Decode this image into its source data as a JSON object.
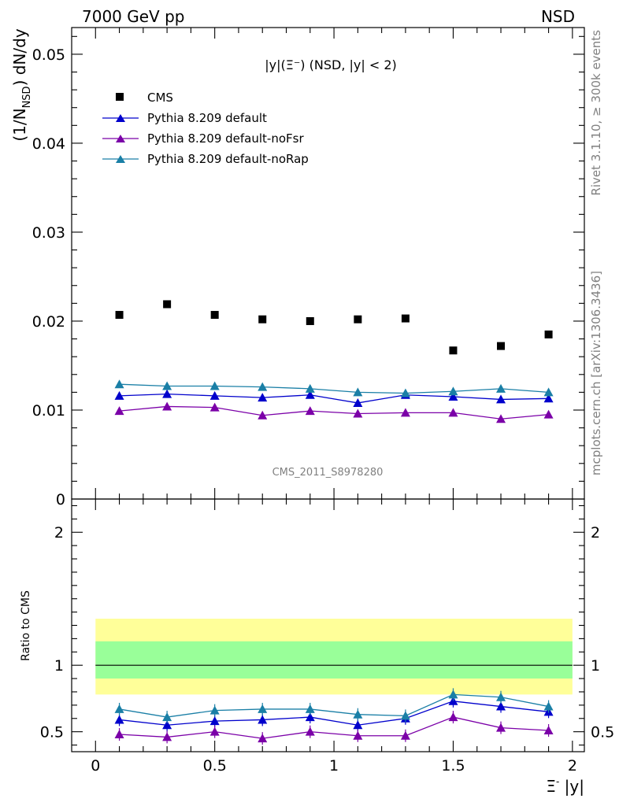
{
  "header": {
    "energy_label": "7000 GeV pp",
    "process_label": "NSD"
  },
  "side_labels": {
    "rivet": "Rivet 3.1.10, ≥ 300k events",
    "mcplots": "mcplots.cern.ch [arXiv:1306.3436]"
  },
  "chart_data": [
    {
      "type": "scatter",
      "title": "|y|(Ξ⁻) (NSD, |y| < 2)",
      "ylabel": "(1/N_NSD) dN/dy",
      "analysis_tag": "CMS_2011_S8978280",
      "xlim": [
        -0.1,
        2.05
      ],
      "ylim": [
        0,
        0.053
      ],
      "yticks": [
        0.01,
        0.02,
        0.03,
        0.04,
        0.05
      ],
      "ytick_labels": [
        "0.01",
        "0.02",
        "0.03",
        "0.04",
        "0.05"
      ],
      "bottom_tick_label": "0",
      "x": [
        0.1,
        0.3,
        0.5,
        0.7,
        0.9,
        1.1,
        1.3,
        1.5,
        1.7,
        1.9
      ],
      "series": [
        {
          "name": "CMS",
          "marker": "square",
          "color": "#000000",
          "values": [
            0.0207,
            0.0219,
            0.0207,
            0.0202,
            0.02,
            0.0202,
            0.0203,
            0.0167,
            0.0172,
            0.0185
          ]
        },
        {
          "name": "Pythia 8.209 default",
          "marker": "triangle",
          "color": "#0000cc",
          "values": [
            0.0116,
            0.0118,
            0.0116,
            0.0114,
            0.0117,
            0.0108,
            0.0117,
            0.0115,
            0.0112,
            0.0113
          ]
        },
        {
          "name": "Pythia 8.209 default-noFsr",
          "marker": "triangle",
          "color": "#7b00a8",
          "values": [
            0.0099,
            0.0104,
            0.0103,
            0.0094,
            0.0099,
            0.0096,
            0.0097,
            0.0097,
            0.009,
            0.0095
          ]
        },
        {
          "name": "Pythia 8.209 default-noRap",
          "marker": "triangle",
          "color": "#1a7fa6",
          "values": [
            0.0129,
            0.0127,
            0.0127,
            0.0126,
            0.0124,
            0.012,
            0.0119,
            0.0121,
            0.0124,
            0.012
          ]
        }
      ]
    },
    {
      "type": "line",
      "ylabel": "Ratio to CMS",
      "xlabel": "Ξ⁻ |y|",
      "xlim": [
        -0.1,
        2.05
      ],
      "ylim": [
        0.35,
        2.25
      ],
      "xticks": [
        0,
        0.5,
        1,
        1.5,
        2
      ],
      "xtick_labels": [
        "0",
        "0.5",
        "1",
        "1.5",
        "2"
      ],
      "yticks": [
        0.5,
        1,
        2
      ],
      "ytick_labels": [
        "0.5",
        "1",
        "2"
      ],
      "bands": [
        {
          "kind": "total uncertainty",
          "color": "#ffff99",
          "low": 0.78,
          "high": 1.35
        },
        {
          "kind": "stat uncertainty",
          "color": "#99ff99",
          "low": 0.9,
          "high": 1.18
        }
      ],
      "x": [
        0.1,
        0.3,
        0.5,
        0.7,
        0.9,
        1.1,
        1.3,
        1.5,
        1.7,
        1.9
      ],
      "series": [
        {
          "name": "Pythia 8.209 default",
          "color": "#0000cc",
          "values": [
            0.59,
            0.55,
            0.58,
            0.59,
            0.61,
            0.55,
            0.6,
            0.73,
            0.69,
            0.65
          ]
        },
        {
          "name": "Pythia 8.209 default-noFsr",
          "color": "#7b00a8",
          "values": [
            0.48,
            0.46,
            0.5,
            0.45,
            0.5,
            0.47,
            0.47,
            0.61,
            0.53,
            0.51
          ]
        },
        {
          "name": "Pythia 8.209 default-noRap",
          "color": "#1a7fa6",
          "values": [
            0.67,
            0.61,
            0.66,
            0.67,
            0.67,
            0.63,
            0.62,
            0.78,
            0.76,
            0.69
          ]
        }
      ]
    }
  ]
}
